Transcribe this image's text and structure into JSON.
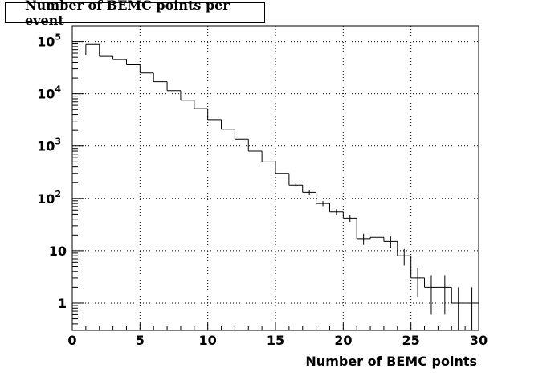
{
  "chart_data": {
    "type": "bar",
    "title": "Number of BEMC points per event",
    "xlabel": "Number of BEMC points",
    "ylabel": "",
    "xlim": [
      0,
      30
    ],
    "ylim": [
      0.3,
      200000
    ],
    "yscale": "log",
    "grid": true,
    "x_ticks": [
      "0",
      "5",
      "10",
      "15",
      "20",
      "25",
      "30"
    ],
    "y_ticks": [
      {
        "base": "1",
        "exp": ""
      },
      {
        "base": "10",
        "exp": ""
      },
      {
        "base": "10",
        "exp": "2"
      },
      {
        "base": "10",
        "exp": "3"
      },
      {
        "base": "10",
        "exp": "4"
      },
      {
        "base": "10",
        "exp": "5"
      }
    ],
    "bin_edges": [
      0,
      1,
      2,
      3,
      4,
      5,
      6,
      7,
      8,
      9,
      10,
      11,
      12,
      13,
      14,
      15,
      16,
      17,
      18,
      19,
      20,
      21,
      22,
      23,
      24,
      25,
      26,
      27,
      28,
      29
    ],
    "values": [
      55000,
      88000,
      52000,
      45000,
      36000,
      25000,
      17000,
      11500,
      7500,
      5200,
      3200,
      2100,
      1350,
      800,
      500,
      300,
      180,
      130,
      80,
      55,
      42,
      17,
      18,
      15,
      8,
      3,
      2,
      2,
      1,
      1
    ],
    "errors": [
      0,
      0,
      0,
      0,
      0,
      0,
      0,
      0,
      0,
      0,
      0,
      0,
      0,
      0,
      0,
      0,
      13,
      11,
      9,
      7.4,
      6.5,
      4.1,
      4.2,
      3.9,
      2.8,
      1.7,
      1.4,
      1.4,
      1,
      1
    ]
  }
}
